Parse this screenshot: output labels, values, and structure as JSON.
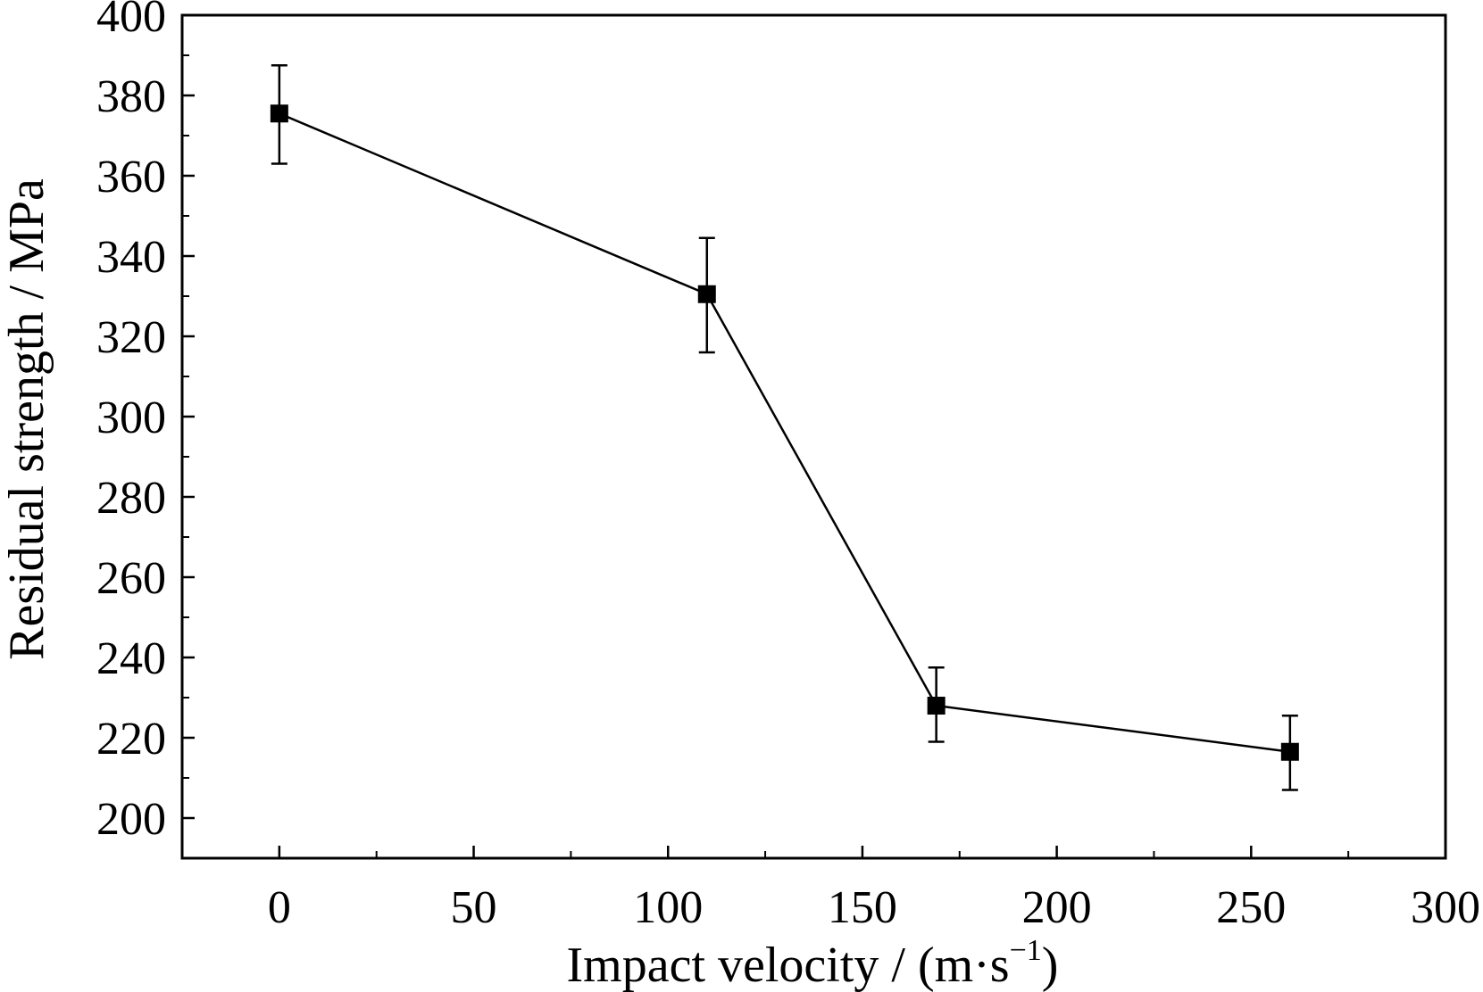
{
  "chart_data": {
    "type": "line",
    "title": "",
    "xlabel": "Impact velocity / (m·s",
    "xlabel_sup": "−1",
    "xlabel_end": ")",
    "ylabel": "Residual strength / MPa",
    "xlim": [
      -25,
      300
    ],
    "ylim": [
      190,
      400
    ],
    "xticks": [
      0,
      50,
      100,
      150,
      200,
      250,
      300
    ],
    "yticks": [
      200,
      220,
      240,
      260,
      280,
      300,
      320,
      340,
      360,
      380,
      400
    ],
    "grid": false,
    "marker": "square",
    "color": "#000000",
    "series": [
      {
        "x": [
          0,
          110,
          169,
          260
        ],
        "y": [
          375.5,
          330.5,
          228,
          216.5
        ],
        "error": [
          [
            363,
            387.5
          ],
          [
            316,
            344.5
          ],
          [
            219,
            237.5
          ],
          [
            207,
            225.5
          ]
        ]
      }
    ]
  }
}
